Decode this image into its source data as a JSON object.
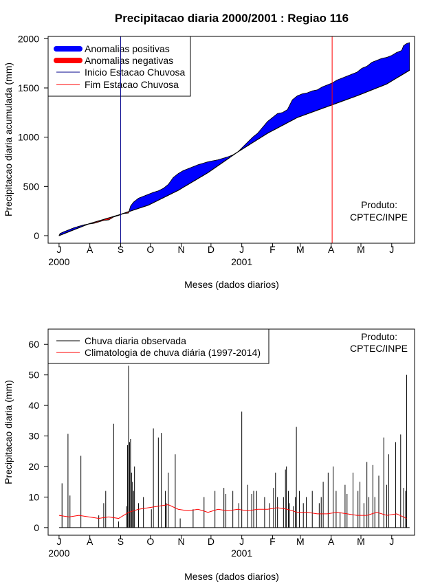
{
  "chart_data": [
    {
      "type": "area",
      "title": "Precipitacao diaria 2000/2001 : Regiao 116",
      "xlabel": "Meses (dados diarios)",
      "ylabel": "Precipitacao diaria acumulada (mm)",
      "ylim": [
        0,
        2100
      ],
      "yticks": [
        0,
        500,
        1000,
        1500,
        2000
      ],
      "xlim": [
        -11,
        358
      ],
      "month_ticks": [
        {
          "label": "J",
          "day": 0
        },
        {
          "label": "A",
          "day": 31
        },
        {
          "label": "S",
          "day": 62
        },
        {
          "label": "O",
          "day": 92
        },
        {
          "label": "N",
          "day": 123
        },
        {
          "label": "D",
          "day": 153
        },
        {
          "label": "J",
          "day": 184
        },
        {
          "label": "F",
          "day": 215
        },
        {
          "label": "M",
          "day": 243
        },
        {
          "label": "A",
          "day": 274
        },
        {
          "label": "M",
          "day": 304
        },
        {
          "label": "J",
          "day": 335
        }
      ],
      "year_labels": [
        {
          "label": "2000",
          "day": 0
        },
        {
          "label": "2001",
          "day": 184
        }
      ],
      "legend": {
        "position": "top-left",
        "entries": [
          "Anomalias positivas",
          "Anomalias negativas",
          "Inicio Estacao Chuvosa",
          "Fim Estacao Chuvosa"
        ]
      },
      "colors": {
        "positive": "#0000ff",
        "negative": "#ff0000",
        "start_line": "#00008b",
        "end_line": "#ff0000"
      },
      "rainy_season_start_day": 62,
      "rainy_season_end_day": 275,
      "annotation": [
        "Produto:",
        "CPTEC/INPE"
      ],
      "observed_cumulative": [
        [
          0,
          0
        ],
        [
          1,
          22
        ],
        [
          5,
          40
        ],
        [
          10,
          60
        ],
        [
          15,
          80
        ],
        [
          20,
          95
        ],
        [
          25,
          110
        ],
        [
          30,
          118
        ],
        [
          35,
          125
        ],
        [
          40,
          140
        ],
        [
          45,
          155
        ],
        [
          50,
          160
        ],
        [
          55,
          190
        ],
        [
          60,
          205
        ],
        [
          65,
          225
        ],
        [
          70,
          230
        ],
        [
          72,
          300
        ],
        [
          75,
          340
        ],
        [
          80,
          380
        ],
        [
          85,
          400
        ],
        [
          90,
          420
        ],
        [
          95,
          440
        ],
        [
          100,
          455
        ],
        [
          105,
          480
        ],
        [
          110,
          520
        ],
        [
          115,
          590
        ],
        [
          120,
          630
        ],
        [
          125,
          660
        ],
        [
          130,
          680
        ],
        [
          135,
          700
        ],
        [
          140,
          720
        ],
        [
          145,
          735
        ],
        [
          150,
          750
        ],
        [
          155,
          760
        ],
        [
          160,
          770
        ],
        [
          165,
          785
        ],
        [
          170,
          800
        ],
        [
          175,
          820
        ],
        [
          180,
          850
        ],
        [
          185,
          900
        ],
        [
          190,
          950
        ],
        [
          195,
          1000
        ],
        [
          200,
          1040
        ],
        [
          205,
          1100
        ],
        [
          210,
          1160
        ],
        [
          215,
          1200
        ],
        [
          220,
          1240
        ],
        [
          225,
          1250
        ],
        [
          230,
          1280
        ],
        [
          232,
          1320
        ],
        [
          235,
          1380
        ],
        [
          240,
          1420
        ],
        [
          245,
          1440
        ],
        [
          250,
          1450
        ],
        [
          255,
          1470
        ],
        [
          260,
          1480
        ],
        [
          265,
          1510
        ],
        [
          270,
          1530
        ],
        [
          275,
          1550
        ],
        [
          280,
          1580
        ],
        [
          285,
          1600
        ],
        [
          290,
          1620
        ],
        [
          295,
          1640
        ],
        [
          300,
          1660
        ],
        [
          305,
          1700
        ],
        [
          310,
          1720
        ],
        [
          315,
          1760
        ],
        [
          320,
          1780
        ],
        [
          325,
          1800
        ],
        [
          330,
          1810
        ],
        [
          335,
          1830
        ],
        [
          340,
          1860
        ],
        [
          345,
          1880
        ],
        [
          347,
          1930
        ],
        [
          350,
          1950
        ],
        [
          353,
          1960
        ]
      ],
      "climatology_cumulative": [
        [
          0,
          0
        ],
        [
          30,
          120
        ],
        [
          60,
          210
        ],
        [
          90,
          310
        ],
        [
          120,
          460
        ],
        [
          150,
          640
        ],
        [
          180,
          850
        ],
        [
          210,
          1040
        ],
        [
          240,
          1200
        ],
        [
          270,
          1310
        ],
        [
          300,
          1420
        ],
        [
          330,
          1540
        ],
        [
          353,
          1680
        ]
      ]
    },
    {
      "type": "line",
      "xlabel": "Meses (dados diarios)",
      "ylabel": "Precipitacao diaria (mm)",
      "ylim": [
        -2.5,
        65
      ],
      "yticks": [
        0,
        10,
        20,
        30,
        40,
        50,
        60
      ],
      "xlim": [
        -11,
        358
      ],
      "month_ticks": [
        {
          "label": "J",
          "day": 0
        },
        {
          "label": "A",
          "day": 31
        },
        {
          "label": "S",
          "day": 62
        },
        {
          "label": "O",
          "day": 92
        },
        {
          "label": "N",
          "day": 123
        },
        {
          "label": "D",
          "day": 153
        },
        {
          "label": "J",
          "day": 184
        },
        {
          "label": "F",
          "day": 215
        },
        {
          "label": "M",
          "day": 243
        },
        {
          "label": "A",
          "day": 274
        },
        {
          "label": "M",
          "day": 304
        },
        {
          "label": "J",
          "day": 335
        }
      ],
      "year_labels": [
        {
          "label": "2000",
          "day": 0
        },
        {
          "label": "2001",
          "day": 184
        }
      ],
      "legend": {
        "position": "top-left",
        "entries": [
          "Chuva diaria observada",
          "Climatologia de chuva diária (1997-2014)"
        ]
      },
      "colors": {
        "observed": "#000000",
        "climatology": "#ff0000"
      },
      "annotation": [
        "Produto:",
        "CPTEC/INPE"
      ],
      "series": [
        {
          "name": "Chuva diaria observada",
          "points": [
            [
              3,
              14.5
            ],
            [
              9,
              30.7
            ],
            [
              11,
              10.5
            ],
            [
              22,
              23.5
            ],
            [
              40,
              4
            ],
            [
              45,
              8
            ],
            [
              47,
              12
            ],
            [
              55,
              34
            ],
            [
              60,
              2
            ],
            [
              68,
              7
            ],
            [
              69,
              27
            ],
            [
              70,
              53
            ],
            [
              71,
              28
            ],
            [
              72,
              29
            ],
            [
              73,
              18
            ],
            [
              74,
              15
            ],
            [
              75,
              12
            ],
            [
              76,
              20
            ],
            [
              80,
              8
            ],
            [
              85,
              10
            ],
            [
              93,
              6
            ],
            [
              95,
              32.5
            ],
            [
              100,
              29.5
            ],
            [
              103,
              31
            ],
            [
              107,
              12
            ],
            [
              108,
              8
            ],
            [
              110,
              18
            ],
            [
              117,
              24
            ],
            [
              122,
              3
            ],
            [
              135,
              6
            ],
            [
              146,
              10
            ],
            [
              157,
              12
            ],
            [
              166,
              13
            ],
            [
              168,
              11
            ],
            [
              175,
              12
            ],
            [
              181,
              8
            ],
            [
              184,
              38
            ],
            [
              190,
              14
            ],
            [
              194,
              11
            ],
            [
              196,
              12
            ],
            [
              199,
              12
            ],
            [
              207,
              10
            ],
            [
              212,
              8
            ],
            [
              216,
              13
            ],
            [
              218,
              18
            ],
            [
              220,
              10
            ],
            [
              226,
              10
            ],
            [
              228,
              19
            ],
            [
              229,
              20
            ],
            [
              231,
              12
            ],
            [
              232,
              8
            ],
            [
              236,
              7
            ],
            [
              238,
              10
            ],
            [
              239,
              33
            ],
            [
              242,
              12
            ],
            [
              246,
              8
            ],
            [
              249,
              10
            ],
            [
              255,
              12
            ],
            [
              262,
              8
            ],
            [
              264,
              10
            ],
            [
              266,
              15
            ],
            [
              271,
              18
            ],
            [
              276,
              20
            ],
            [
              279,
              12
            ],
            [
              283,
              5
            ],
            [
              288,
              14
            ],
            [
              290,
              11
            ],
            [
              296,
              18
            ],
            [
              301,
              12
            ],
            [
              303,
              15
            ],
            [
              307,
              8
            ],
            [
              310,
              21.5
            ],
            [
              312,
              10
            ],
            [
              316,
              20.5
            ],
            [
              318,
              10
            ],
            [
              322,
              17
            ],
            [
              327,
              29.5
            ],
            [
              330,
              14
            ],
            [
              332,
              24
            ],
            [
              339,
              28
            ],
            [
              344,
              30.5
            ],
            [
              347,
              13
            ],
            [
              349,
              12
            ],
            [
              350,
              50
            ]
          ]
        },
        {
          "name": "Climatologia de chuva diária (1997-2014)",
          "points": [
            [
              0,
              4
            ],
            [
              10,
              3.5
            ],
            [
              20,
              4
            ],
            [
              30,
              3.5
            ],
            [
              40,
              3
            ],
            [
              50,
              3.5
            ],
            [
              60,
              3
            ],
            [
              70,
              5
            ],
            [
              80,
              6
            ],
            [
              90,
              6.5
            ],
            [
              100,
              7
            ],
            [
              110,
              7.5
            ],
            [
              120,
              6
            ],
            [
              130,
              5.5
            ],
            [
              140,
              6
            ],
            [
              150,
              5
            ],
            [
              160,
              6
            ],
            [
              170,
              5.5
            ],
            [
              180,
              6
            ],
            [
              190,
              5.5
            ],
            [
              200,
              6
            ],
            [
              210,
              6
            ],
            [
              220,
              6.5
            ],
            [
              230,
              6
            ],
            [
              240,
              5
            ],
            [
              250,
              5
            ],
            [
              260,
              4.5
            ],
            [
              270,
              4.5
            ],
            [
              280,
              5
            ],
            [
              290,
              4.5
            ],
            [
              300,
              4
            ],
            [
              310,
              4
            ],
            [
              320,
              5
            ],
            [
              330,
              4
            ],
            [
              340,
              4.5
            ],
            [
              350,
              3
            ]
          ]
        }
      ]
    }
  ]
}
